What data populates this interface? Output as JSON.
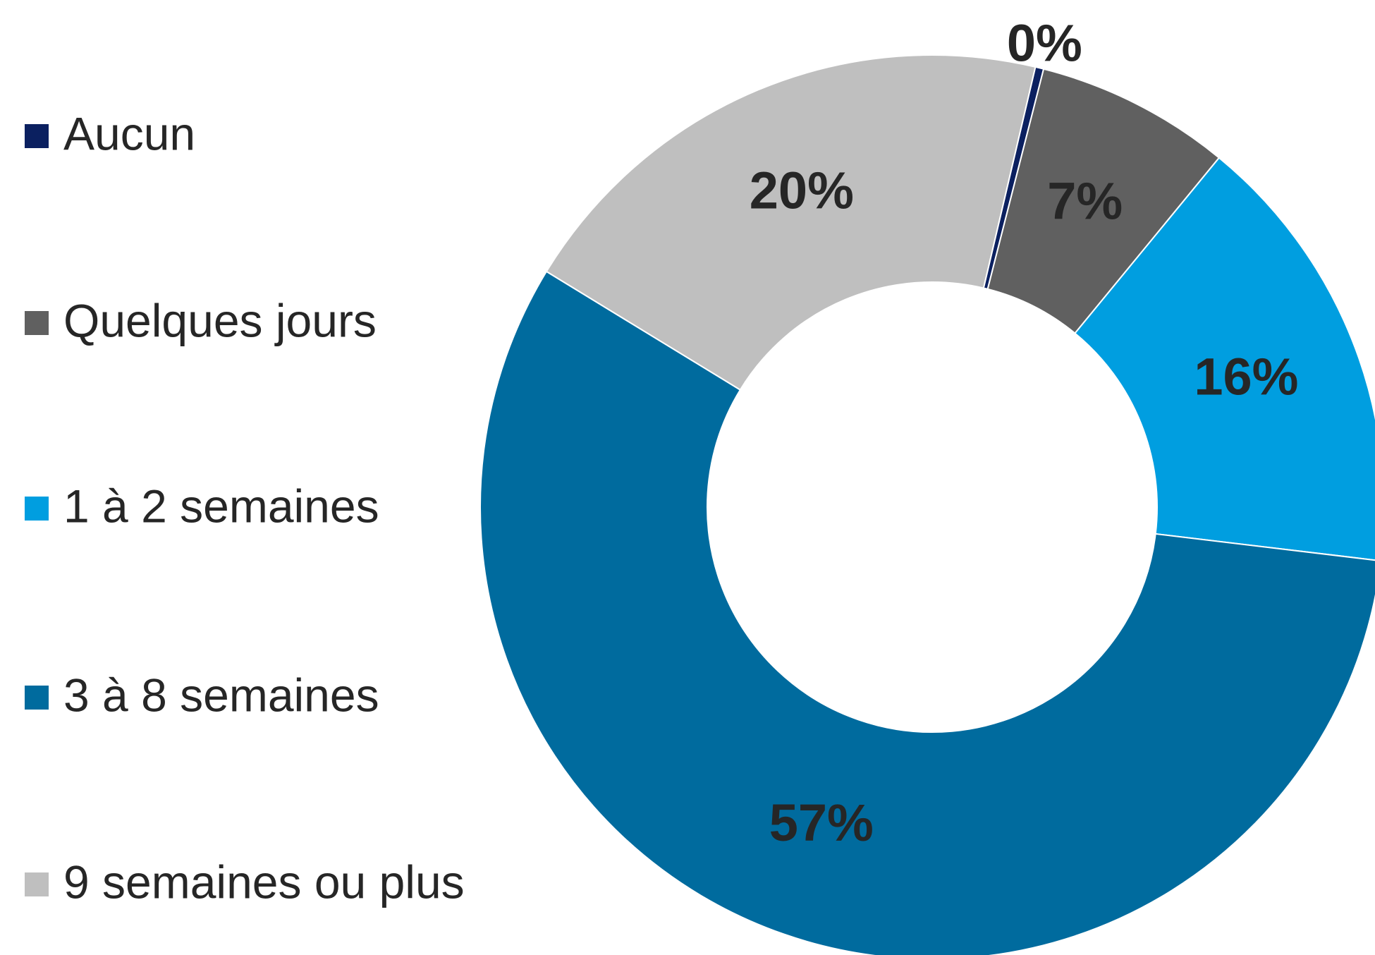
{
  "chart_data": {
    "type": "donut",
    "categories": [
      "Aucun",
      "Quelques jours",
      "1 à 2 semaines",
      "3 à 8 semaines",
      "9 semaines ou plus"
    ],
    "values": [
      0.3,
      7,
      16,
      57,
      20
    ],
    "value_labels": [
      "0%",
      "7%",
      "16%",
      "57%",
      "20%"
    ],
    "colors": [
      "#0b2060",
      "#606060",
      "#009ee0",
      "#006b9e",
      "#bfbfbf"
    ],
    "legend": "left"
  }
}
